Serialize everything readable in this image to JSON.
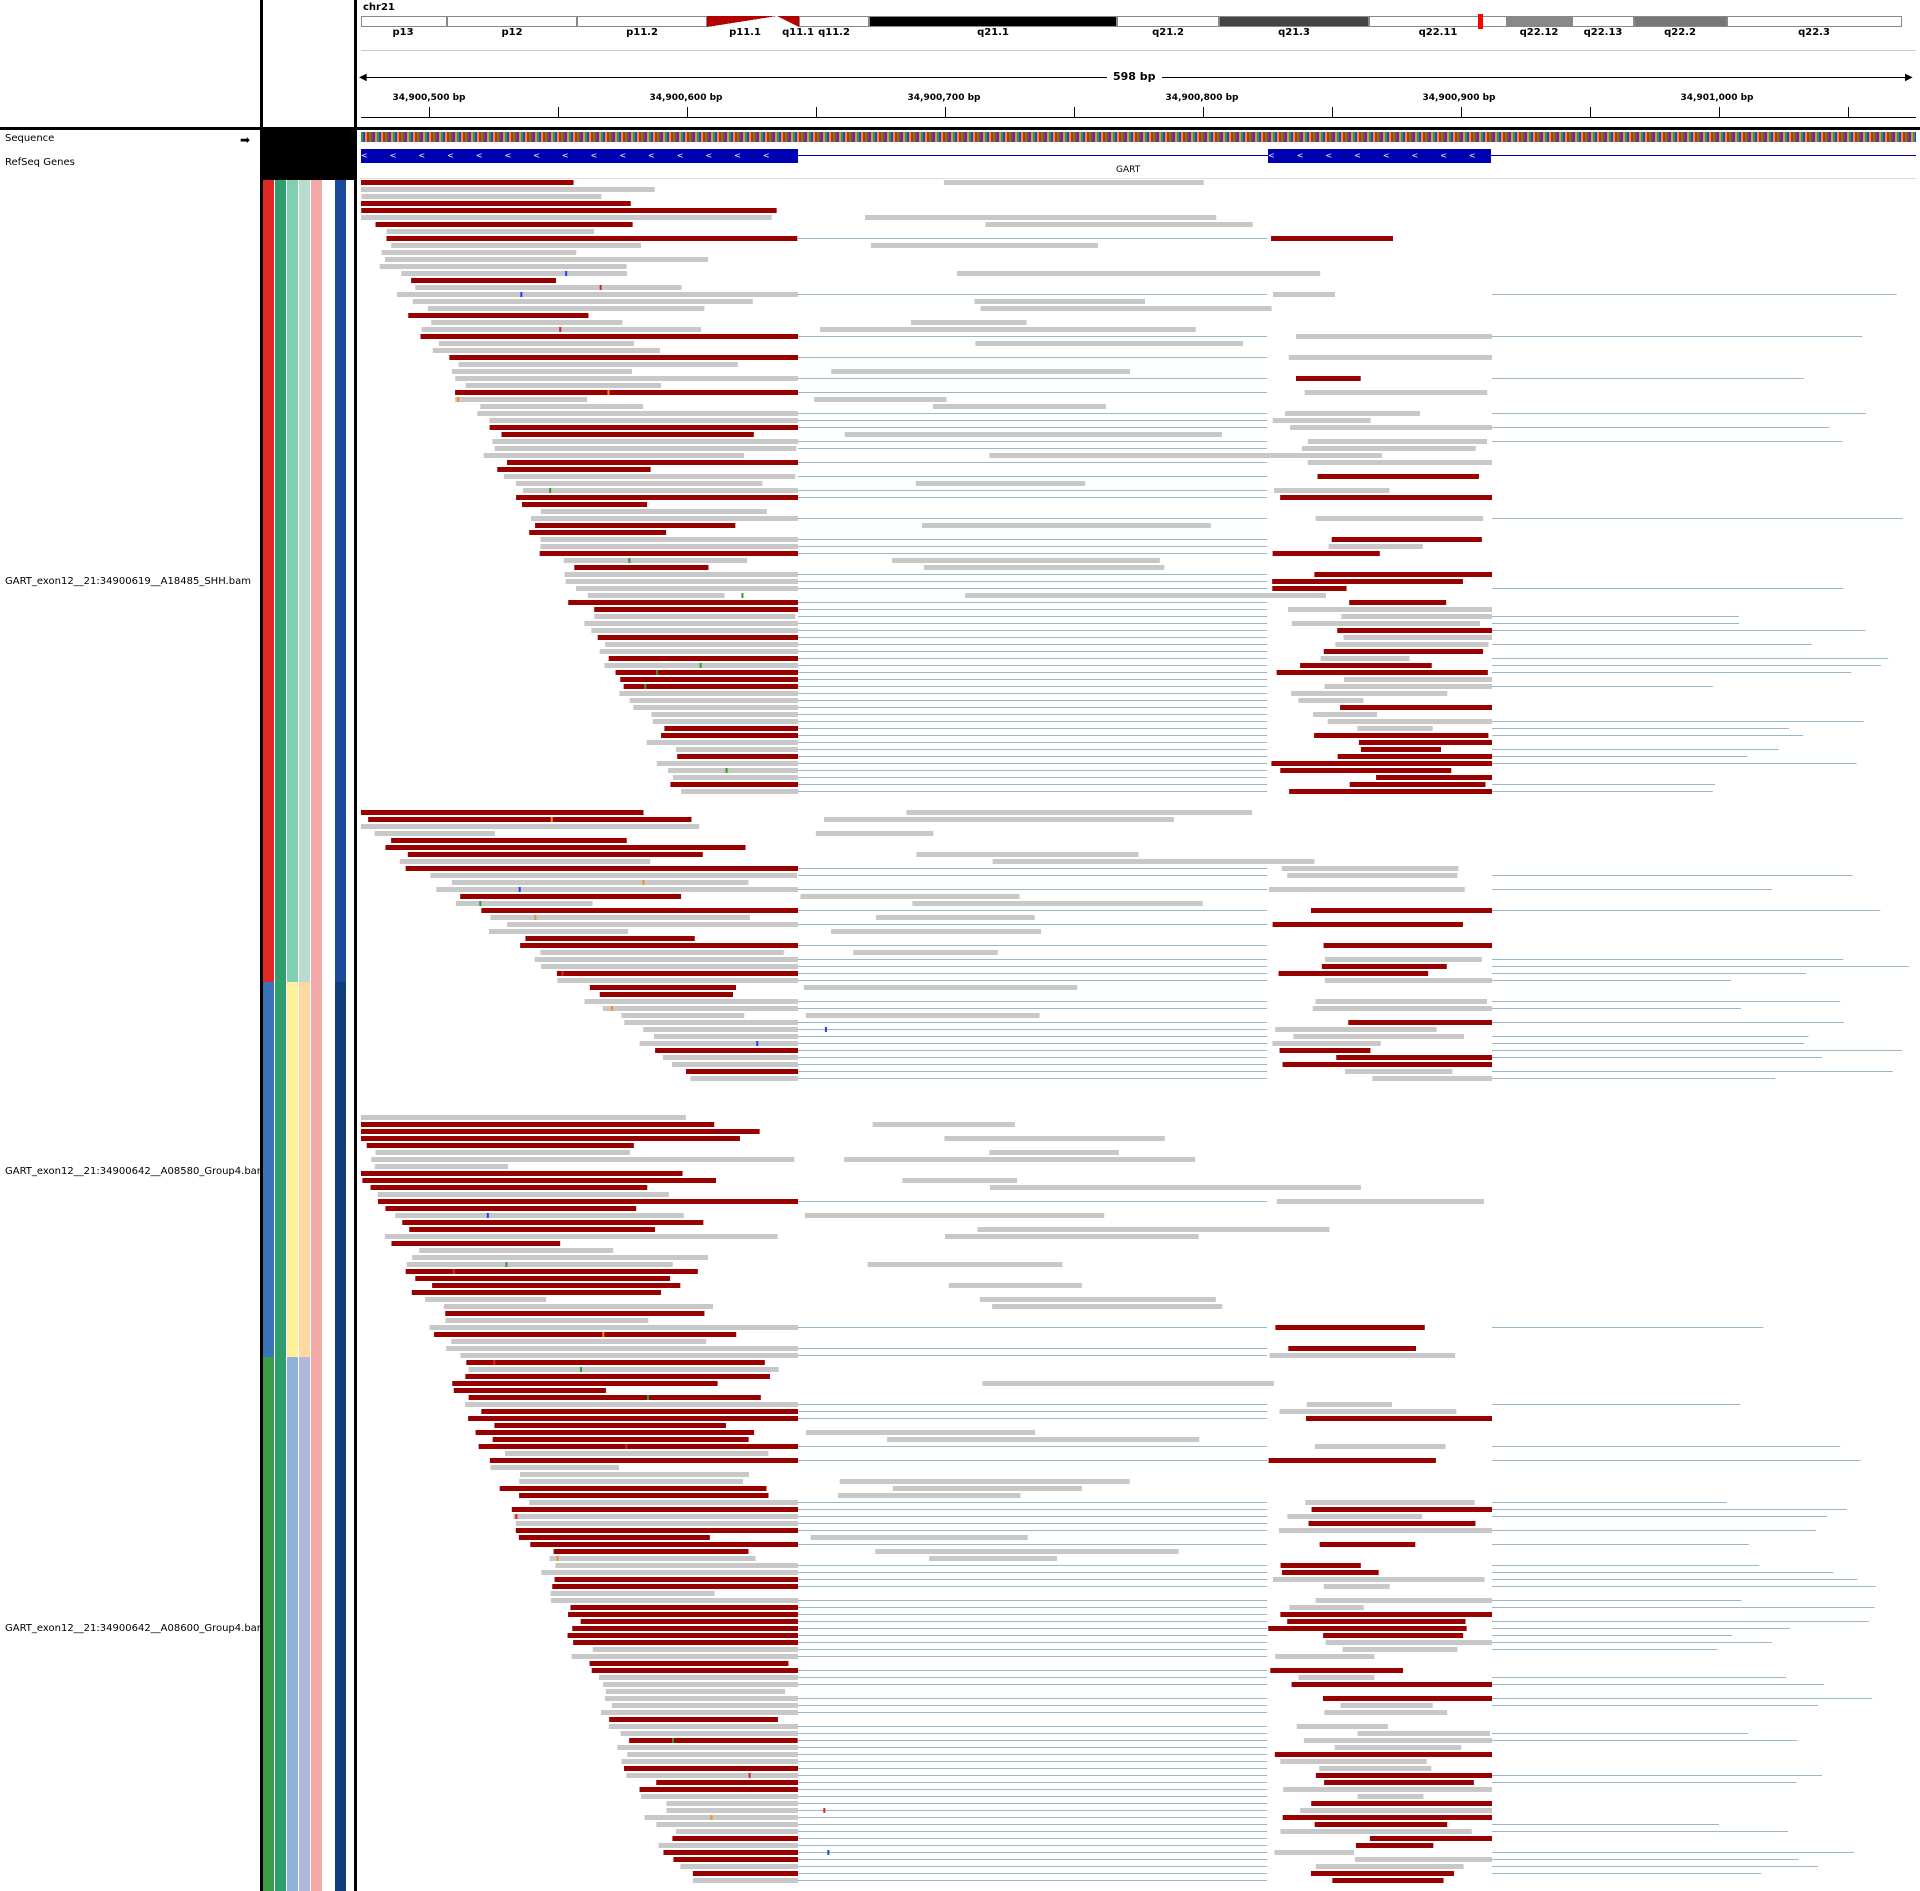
{
  "chromosome": "chr21",
  "bands": [
    "p13",
    "p12",
    "p11.2",
    "p11.1",
    "q11.1",
    "q11.2",
    "q21.1",
    "q21.2",
    "q21.3",
    "q22.11",
    "q22.12",
    "q22.13",
    "q22.2",
    "q22.3"
  ],
  "span_label": "598 bp",
  "ruler_ticks": [
    "34,900,500 bp",
    "34,900,600 bp",
    "34,900,700 bp",
    "34,900,800 bp",
    "34,900,900 bp",
    "34,901,000 bp"
  ],
  "tracks": {
    "sequence": "Sequence",
    "refseq": "RefSeq Genes",
    "gene_name": "GART"
  },
  "bam_tracks": [
    {
      "name": "GART_exon12__21:34900619__A18485_SHH.bam",
      "attr_colors": [
        "#e32626",
        "#2f9e6e",
        "#7fcfb0",
        "#b8dccf",
        "#f4a9a9",
        "#ffffff",
        "#1a4a9a"
      ]
    },
    {
      "name": "GART_exon12__21:34900642__A08580_Group4.bam",
      "attr_colors": [
        "#3b73b8",
        "#2f9e6e",
        "#fff09a",
        "#ffd8a0",
        "#f4a9a9",
        "#ffffff",
        "#0f3d7a"
      ]
    },
    {
      "name": "GART_exon12__21:34900642__A08600_Group4.bam",
      "attr_colors": [
        "#3a9e48",
        "#2f9e6e",
        "#8fb0d8",
        "#b0b8e0",
        "#f4a9a9",
        "#ffffff",
        "#0f3d7a"
      ]
    }
  ],
  "colors": {
    "read_gray": "#c8c8c8",
    "read_red": "#990000",
    "exon_blue": "#0000b3",
    "split_line": "#9bb8c8"
  }
}
